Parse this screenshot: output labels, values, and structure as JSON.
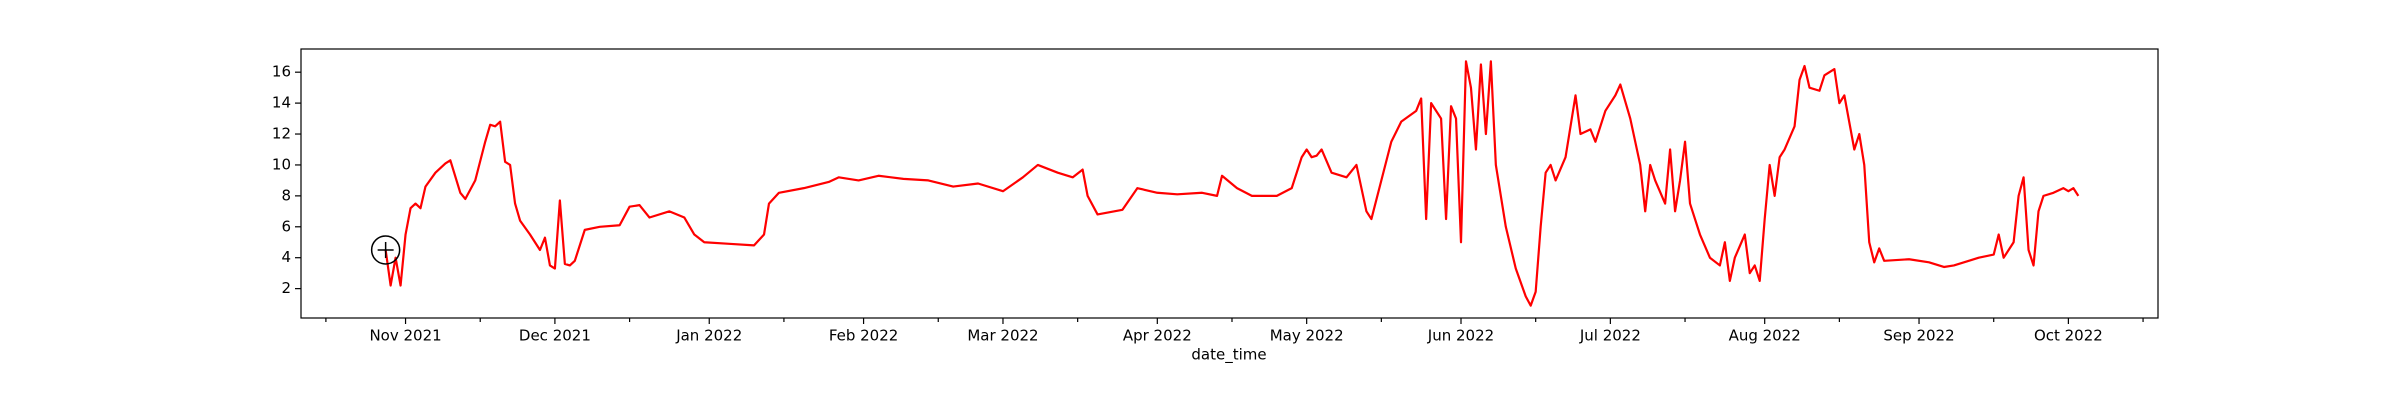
{
  "chart_data": {
    "type": "line",
    "xlabel": "date_time",
    "x": [
      "2021-10-28",
      "2021-10-29",
      "2021-10-30",
      "2021-10-31",
      "2021-11-01",
      "2021-11-02",
      "2021-11-03",
      "2021-11-04",
      "2021-11-05",
      "2021-11-07",
      "2021-11-09",
      "2021-11-10",
      "2021-11-12",
      "2021-11-13",
      "2021-11-15",
      "2021-11-17",
      "2021-11-18",
      "2021-11-19",
      "2021-11-20",
      "2021-11-21",
      "2021-11-22",
      "2021-11-23",
      "2021-11-24",
      "2021-11-26",
      "2021-11-28",
      "2021-11-29",
      "2021-11-30",
      "2021-12-01",
      "2021-12-02",
      "2021-12-03",
      "2021-12-04",
      "2021-12-05",
      "2021-12-07",
      "2021-12-10",
      "2021-12-14",
      "2021-12-16",
      "2021-12-18",
      "2021-12-20",
      "2021-12-24",
      "2021-12-27",
      "2021-12-29",
      "2021-12-31",
      "2022-01-05",
      "2022-01-10",
      "2022-01-12",
      "2022-01-13",
      "2022-01-15",
      "2022-01-20",
      "2022-01-25",
      "2022-01-27",
      "2022-01-31",
      "2022-02-04",
      "2022-02-09",
      "2022-02-14",
      "2022-02-19",
      "2022-02-24",
      "2022-03-01",
      "2022-03-05",
      "2022-03-08",
      "2022-03-12",
      "2022-03-15",
      "2022-03-17",
      "2022-03-18",
      "2022-03-20",
      "2022-03-25",
      "2022-03-28",
      "2022-04-01",
      "2022-04-05",
      "2022-04-10",
      "2022-04-13",
      "2022-04-14",
      "2022-04-17",
      "2022-04-20",
      "2022-04-25",
      "2022-04-28",
      "2022-04-30",
      "2022-05-01",
      "2022-05-02",
      "2022-05-03",
      "2022-05-04",
      "2022-05-06",
      "2022-05-09",
      "2022-05-11",
      "2022-05-13",
      "2022-05-14",
      "2022-05-16",
      "2022-05-18",
      "2022-05-20",
      "2022-05-23",
      "2022-05-24",
      "2022-05-25",
      "2022-05-26",
      "2022-05-28",
      "2022-05-29",
      "2022-05-30",
      "2022-05-31",
      "2022-06-01",
      "2022-06-02",
      "2022-06-03",
      "2022-06-04",
      "2022-06-05",
      "2022-06-06",
      "2022-06-07",
      "2022-06-08",
      "2022-06-10",
      "2022-06-12",
      "2022-06-14",
      "2022-06-15",
      "2022-06-16",
      "2022-06-17",
      "2022-06-18",
      "2022-06-19",
      "2022-06-20",
      "2022-06-22",
      "2022-06-24",
      "2022-06-25",
      "2022-06-27",
      "2022-06-28",
      "2022-06-30",
      "2022-07-02",
      "2022-07-03",
      "2022-07-05",
      "2022-07-07",
      "2022-07-08",
      "2022-07-09",
      "2022-07-10",
      "2022-07-12",
      "2022-07-13",
      "2022-07-14",
      "2022-07-15",
      "2022-07-16",
      "2022-07-17",
      "2022-07-19",
      "2022-07-21",
      "2022-07-23",
      "2022-07-24",
      "2022-07-25",
      "2022-07-26",
      "2022-07-28",
      "2022-07-29",
      "2022-07-30",
      "2022-07-31",
      "2022-08-01",
      "2022-08-02",
      "2022-08-03",
      "2022-08-04",
      "2022-08-05",
      "2022-08-07",
      "2022-08-08",
      "2022-08-09",
      "2022-08-10",
      "2022-08-12",
      "2022-08-13",
      "2022-08-15",
      "2022-08-16",
      "2022-08-17",
      "2022-08-19",
      "2022-08-20",
      "2022-08-21",
      "2022-08-22",
      "2022-08-23",
      "2022-08-24",
      "2022-08-25",
      "2022-08-30",
      "2022-09-03",
      "2022-09-06",
      "2022-09-08",
      "2022-09-11",
      "2022-09-13",
      "2022-09-16",
      "2022-09-17",
      "2022-09-18",
      "2022-09-20",
      "2022-09-21",
      "2022-09-22",
      "2022-09-23",
      "2022-09-24",
      "2022-09-25",
      "2022-09-26",
      "2022-09-28",
      "2022-09-30",
      "2022-10-01",
      "2022-10-02",
      "2022-10-03"
    ],
    "series": [
      {
        "color": "#ff0000",
        "values": [
          4.5,
          2.2,
          4.0,
          2.2,
          5.5,
          7.2,
          7.5,
          7.2,
          8.6,
          9.5,
          10.1,
          10.3,
          8.2,
          7.8,
          9.0,
          11.5,
          12.6,
          12.5,
          12.8,
          10.2,
          10.0,
          7.5,
          6.4,
          5.5,
          4.5,
          5.3,
          3.5,
          3.3,
          7.7,
          3.6,
          3.5,
          3.8,
          5.8,
          6.0,
          6.1,
          7.3,
          7.4,
          6.6,
          7.0,
          6.6,
          5.5,
          5.0,
          4.9,
          4.8,
          5.5,
          7.5,
          8.2,
          8.5,
          8.9,
          9.2,
          9.0,
          9.3,
          9.1,
          9.0,
          8.6,
          8.8,
          8.3,
          9.2,
          10.0,
          9.5,
          9.2,
          9.7,
          8.0,
          6.8,
          7.1,
          8.5,
          8.2,
          8.1,
          8.2,
          8.0,
          9.3,
          8.5,
          8.0,
          8.0,
          8.5,
          10.5,
          11.0,
          10.5,
          10.6,
          11.0,
          9.5,
          9.2,
          10.0,
          7.0,
          6.5,
          9.0,
          11.5,
          12.8,
          13.5,
          14.3,
          6.5,
          14.0,
          13.0,
          6.5,
          13.8,
          13.0,
          5.0,
          16.7,
          15.0,
          11.0,
          16.5,
          12.0,
          16.7,
          10.0,
          6.0,
          3.3,
          1.5,
          0.9,
          1.8,
          6.0,
          9.5,
          10.0,
          9.0,
          10.5,
          14.5,
          12.0,
          12.3,
          11.5,
          13.5,
          14.5,
          15.2,
          13.0,
          10.0,
          7.0,
          10.0,
          9.0,
          7.5,
          11.0,
          7.0,
          9.0,
          11.5,
          7.5,
          5.5,
          4.0,
          3.5,
          5.0,
          2.5,
          4.0,
          5.5,
          3.0,
          3.5,
          2.5,
          6.5,
          10.0,
          8.0,
          10.5,
          11.0,
          12.5,
          15.5,
          16.4,
          15.0,
          14.8,
          15.8,
          16.2,
          14.0,
          14.5,
          11.0,
          12.0,
          10.0,
          5.0,
          3.7,
          4.6,
          3.8,
          3.9,
          3.7,
          3.4,
          3.5,
          3.8,
          4.0,
          4.2,
          5.5,
          4.0,
          5.0,
          8.0,
          9.2,
          4.5,
          3.5,
          7.0,
          8.0,
          8.2,
          8.5,
          8.3,
          8.5,
          8.0
        ]
      }
    ],
    "xlim": [
      "2021-10-11",
      "2022-10-19"
    ],
    "xticks": [
      {
        "value": "2021-11",
        "label": "Nov 2021"
      },
      {
        "value": "2021-12",
        "label": "Dec 2021"
      },
      {
        "value": "2022-01",
        "label": "Jan 2022"
      },
      {
        "value": "2022-02",
        "label": "Feb 2022"
      },
      {
        "value": "2022-03",
        "label": "Mar 2022"
      },
      {
        "value": "2022-04",
        "label": "Apr 2022"
      },
      {
        "value": "2022-05",
        "label": "May 2022"
      },
      {
        "value": "2022-06",
        "label": "Jun 2022"
      },
      {
        "value": "2022-07",
        "label": "Jul 2022"
      },
      {
        "value": "2022-08",
        "label": "Aug 2022"
      },
      {
        "value": "2022-09",
        "label": "Sep 2022"
      },
      {
        "value": "2022-10",
        "label": "Oct 2022"
      }
    ],
    "xminorticks": [
      "2021-10-16",
      "2021-11-16",
      "2021-12-16",
      "2022-01-16",
      "2022-02-16",
      "2022-03-16",
      "2022-04-16",
      "2022-05-16",
      "2022-06-16",
      "2022-07-16",
      "2022-08-16",
      "2022-09-16",
      "2022-10-16"
    ],
    "ylim": [
      0.1,
      17.5
    ],
    "yticks": [
      2,
      4,
      6,
      8,
      10,
      12,
      14,
      16
    ],
    "grid": false
  }
}
